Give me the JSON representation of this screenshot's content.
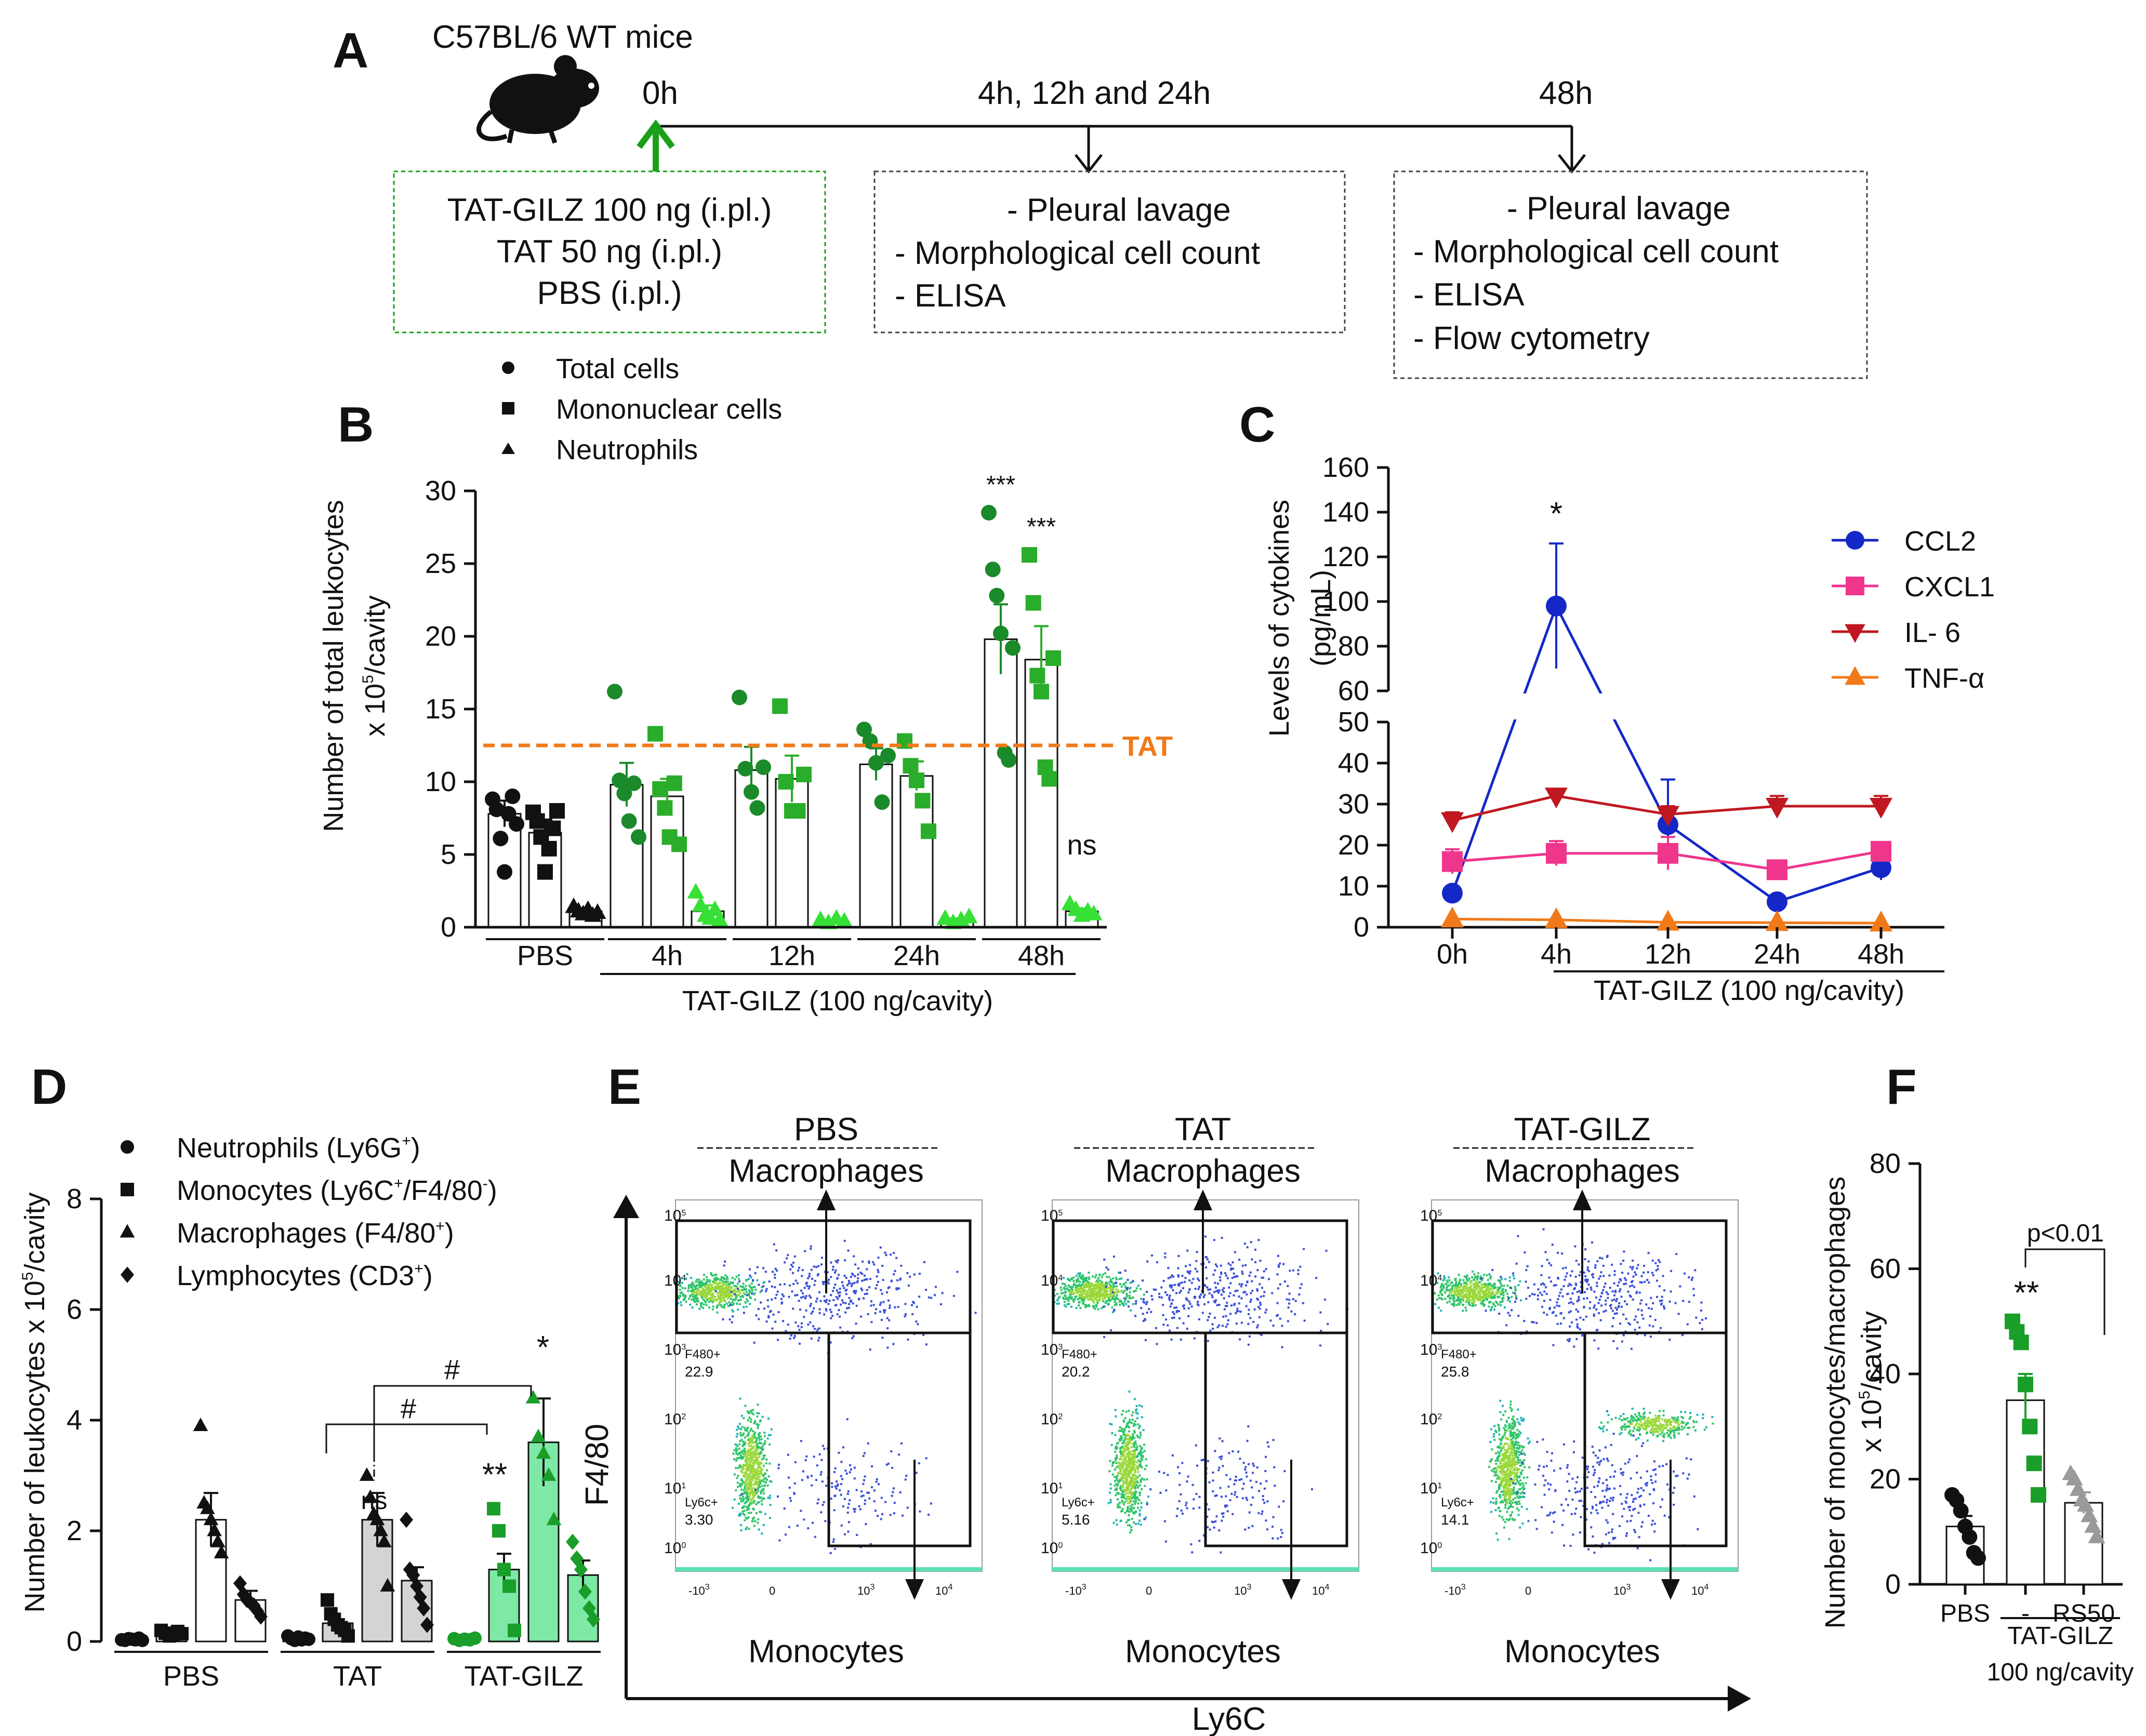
{
  "panels": [
    "A",
    "B",
    "C",
    "D",
    "E",
    "F"
  ],
  "panel_a": {
    "mouse_label": "C57BL/6 WT mice",
    "timepoints": [
      "0h",
      "4h, 12h and 24h",
      "48h"
    ],
    "box1": [
      "TAT-GILZ 100 ng (i.pl.)",
      "TAT 50 ng (i.pl.)",
      "PBS (i.pl.)"
    ],
    "box2": [
      "- Pleural lavage",
      "- Morphological cell count",
      "- ELISA"
    ],
    "box3": [
      "- Pleural lavage",
      "- Morphological cell count",
      "- ELISA",
      "- Flow cytometry"
    ],
    "colors": {
      "green_arrow": "#1aa01a"
    }
  },
  "chart_data": [
    {
      "panel": "B",
      "type": "bar",
      "title": "",
      "ylabel": "Number of total leukocytes",
      "ylabel2": "x 10",
      "ylabel2_sup": "5",
      "ylabel2_tail": "/cavity",
      "ylim": [
        0,
        30
      ],
      "yticks": [
        "0",
        "5",
        "10",
        "15",
        "20",
        "25",
        "30"
      ],
      "groups": [
        "PBS",
        "4h",
        "12h",
        "24h",
        "48h"
      ],
      "group_caption": "TAT-GILZ (100 ng/cavity)",
      "legend": [
        "Total cells",
        "Mononuclear cells",
        "Neutrophils"
      ],
      "series": [
        {
          "name": "Total cells",
          "values": [
            7.8,
            9.8,
            10.8,
            11.2,
            19.8
          ],
          "errors": [
            0.9,
            1.5,
            1.6,
            1.1,
            2.4
          ],
          "points": [
            [
              8.8,
              8.1,
              6.1,
              3.8,
              7.8,
              9.0,
              7.1
            ],
            [
              16.2,
              10.1,
              9.2,
              7.3,
              9.9,
              6.2
            ],
            [
              15.8,
              10.9,
              9.3,
              8.2,
              11.0
            ],
            [
              13.6,
              12.8,
              11.3,
              8.6,
              11.8
            ],
            [
              28.5,
              24.6,
              22.8,
              20.2,
              12.0,
              11.5,
              19.2
            ]
          ]
        },
        {
          "name": "Mononuclear cells",
          "values": [
            6.5,
            9.0,
            10.2,
            10.4,
            18.4
          ],
          "errors": [
            0.9,
            1.2,
            1.6,
            1.0,
            2.3
          ],
          "points": [
            [
              7.9,
              7.3,
              6.2,
              3.8,
              5.4,
              6.8,
              8.0
            ],
            [
              13.3,
              9.5,
              8.2,
              6.2,
              9.9,
              5.7
            ],
            [
              15.2,
              10.0,
              8.0,
              8.0,
              10.5
            ],
            [
              12.8,
              11.1,
              10.1,
              8.7,
              6.6
            ],
            [
              25.6,
              22.3,
              17.3,
              16.2,
              11.0,
              10.2,
              18.5
            ]
          ]
        },
        {
          "name": "Neutrophils",
          "values": [
            1.1,
            1.1,
            0.4,
            0.5,
            1.1
          ],
          "errors": [
            0.2,
            0.4,
            0.1,
            0.1,
            0.2
          ],
          "points": [
            [
              1.4,
              1.1,
              0.9,
              1.2,
              0.8,
              1.0
            ],
            [
              2.4,
              1.5,
              0.8,
              0.6,
              1.2,
              0.5
            ],
            [
              0.5,
              0.3,
              0.6,
              0.4
            ],
            [
              0.6,
              0.3,
              0.5,
              0.7
            ],
            [
              1.6,
              1.2,
              0.8,
              1.1,
              0.9
            ]
          ]
        }
      ],
      "significance": [
        {
          "group": "48h",
          "series": "Total cells",
          "label": "***"
        },
        {
          "group": "48h",
          "series": "Mononuclear cells",
          "label": "***"
        },
        {
          "group": "48h",
          "series": "Neutrophils",
          "label": "ns"
        }
      ],
      "reference_line": {
        "value": 12.5,
        "label": "TAT",
        "color": "#f07a1a"
      },
      "colors": {
        "pbs": "#111111",
        "total": "#1a8a2a",
        "mono": "#2aad2a",
        "neut": "#36e036"
      }
    },
    {
      "panel": "C",
      "type": "line",
      "ylabel": "Levels of cytokines",
      "ylabel2": "(pg/mL)",
      "x": [
        "0h",
        "4h",
        "12h",
        "24h",
        "48h"
      ],
      "caption": "TAT-GILZ (100 ng/cavity)",
      "yticks_low": [
        "0",
        "10",
        "20",
        "30",
        "40",
        "50"
      ],
      "yticks_high": [
        "60",
        "80",
        "100",
        "120",
        "140",
        "160"
      ],
      "y_break": [
        50,
        60
      ],
      "series": [
        {
          "name": "CCL2",
          "values": [
            8.3,
            98,
            25,
            6.2,
            14.5
          ],
          "errors": [
            0,
            28,
            11,
            0,
            3
          ],
          "color": "#1428c8",
          "marker": "circle"
        },
        {
          "name": "CXCL1",
          "values": [
            16,
            18,
            18,
            14,
            18.5
          ],
          "errors": [
            3,
            3,
            4,
            0,
            0
          ],
          "color": "#f0358c",
          "marker": "square"
        },
        {
          "name": "IL- 6",
          "values": [
            26,
            32,
            27.5,
            29.5,
            29.5
          ],
          "errors": [
            2,
            0,
            2,
            2.5,
            2.5
          ],
          "color": "#c01820",
          "marker": "triangle-down"
        },
        {
          "name": "TNF-α",
          "values": [
            2,
            1.8,
            1.2,
            1.1,
            1
          ],
          "errors": [
            0,
            0,
            0,
            0,
            0
          ],
          "color": "#f07a1a",
          "marker": "triangle"
        }
      ],
      "significance": [
        {
          "x": "4h",
          "label": "*"
        }
      ]
    },
    {
      "panel": "D",
      "type": "bar",
      "ylabel": "Number of leukocytes x 10",
      "ylabel_sup": "5",
      "ylabel_tail": "/cavity",
      "ylim": [
        0,
        8
      ],
      "yticks": [
        "0",
        "2",
        "4",
        "6",
        "8"
      ],
      "groups": [
        "PBS",
        "TAT",
        "TAT-GILZ"
      ],
      "legend": [
        {
          "base": "Neutrophils (Ly6G",
          "sup": "+",
          "tail": ")"
        },
        {
          "base": "Monocytes (Ly6C",
          "sup": "+",
          "mid": "/F4/80",
          "sup2": "-",
          "tail": ")"
        },
        {
          "base": "Macrophages (F4/80",
          "sup": "+",
          "tail": ")"
        },
        {
          "base": "Lymphocytes (CD3",
          "sup": "+",
          "tail": ")"
        }
      ],
      "series": [
        {
          "name": "Neutrophils",
          "values": [
            0.04,
            0.05,
            0.04
          ]
        },
        {
          "name": "Monocytes",
          "values": [
            0.15,
            0.33,
            1.3
          ]
        },
        {
          "name": "Macrophages",
          "values": [
            2.2,
            2.2,
            3.6
          ]
        },
        {
          "name": "Lymphocytes",
          "values": [
            0.75,
            1.1,
            1.2
          ]
        }
      ],
      "significance_labels": [
        "ns",
        "**",
        "*",
        "#",
        "#"
      ],
      "colors": {
        "tat_fill": "#d4d4d4",
        "gilz_fill": "#7ee8a6",
        "gilz_mark": "#1a9e2a"
      }
    },
    {
      "panel": "E",
      "type": "scatter",
      "xlabel": "Ly6C",
      "ylabel": "F4/80",
      "plots": [
        {
          "title": "PBS",
          "macro_pct": "22.9",
          "mono_pct": "3.30"
        },
        {
          "title": "TAT",
          "macro_pct": "20.2",
          "mono_pct": "5.16"
        },
        {
          "title": "TAT-GILZ",
          "macro_pct": "25.8",
          "mono_pct": "14.1"
        }
      ],
      "gate_top": "Macrophages",
      "gate_bottom": "Monocytes",
      "gate_label_top": "F480+",
      "gate_label_bottom": "Ly6c+",
      "axis_ticks_y": [
        "10",
        "10",
        "10",
        "10",
        "10",
        "10"
      ],
      "axis_ticks_y_exp": [
        "5",
        "4",
        "3",
        "2",
        "1",
        "0"
      ],
      "axis_ticks_x": [
        "-10",
        "0",
        "10",
        "10"
      ],
      "axis_ticks_x_exp": [
        "3",
        "",
        "3",
        "4"
      ]
    },
    {
      "panel": "F",
      "type": "bar",
      "ylabel": "Number of monocytes/macrophages",
      "ylabel2": "x 10",
      "ylabel2_sup": "5",
      "ylabel2_tail": "/cavity",
      "ylim": [
        0,
        80
      ],
      "yticks": [
        "0",
        "20",
        "40",
        "60",
        "80"
      ],
      "categories": [
        "PBS",
        "-",
        "RS50"
      ],
      "values": [
        11,
        35,
        15.5
      ],
      "errors": [
        2,
        5,
        2
      ],
      "points": [
        [
          17,
          16,
          14,
          11,
          9,
          6,
          5
        ],
        [
          50,
          48,
          46,
          38,
          30,
          23,
          17
        ],
        [
          21,
          20,
          18,
          16,
          15,
          13,
          11,
          9
        ]
      ],
      "caption_line1": "TAT-GILZ",
      "caption_line2": "100 ng/cavity",
      "significance": [
        {
          "category": "-",
          "label": "**"
        }
      ],
      "bracket_label": "p<0.01",
      "colors": {
        "pbs": "#111111",
        "gilz": "#1a9e2a",
        "rs50": "#9a9a9a"
      }
    }
  ]
}
